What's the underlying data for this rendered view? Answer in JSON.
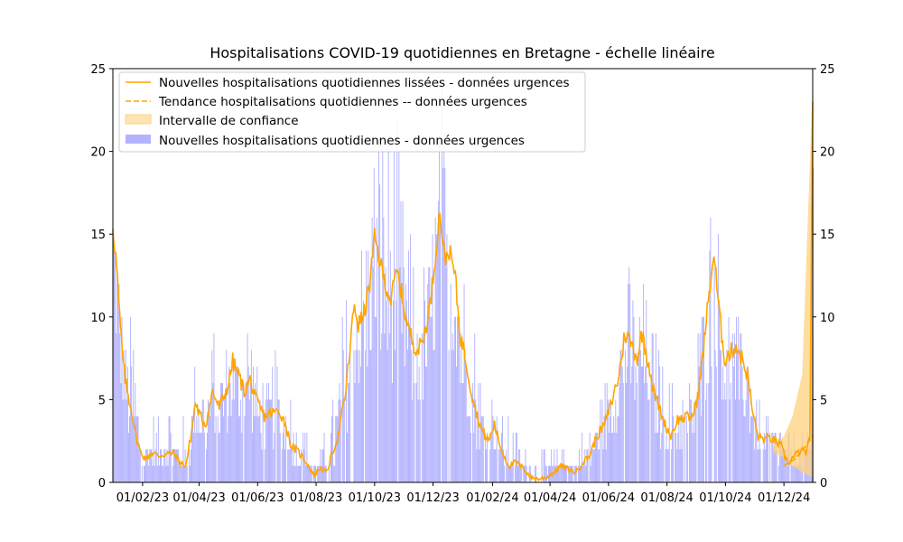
{
  "chart_data": {
    "type": "bar+line",
    "title": "Hospitalisations COVID-19 quotidiennes en Bretagne - échelle linéaire",
    "xlabel": "",
    "ylabel": "",
    "x_range": [
      "2023-01-01",
      "2024-12-31"
    ],
    "ylim": [
      0,
      25
    ],
    "y_ticks": [
      0,
      5,
      10,
      15,
      20,
      25
    ],
    "y_ticks_right": [
      0,
      5,
      10,
      15,
      20,
      25
    ],
    "x_ticks": [
      {
        "date": "2023-02-01",
        "label": "01/02/23"
      },
      {
        "date": "2023-04-01",
        "label": "01/04/23"
      },
      {
        "date": "2023-06-01",
        "label": "01/06/23"
      },
      {
        "date": "2023-08-01",
        "label": "01/08/23"
      },
      {
        "date": "2023-10-01",
        "label": "01/10/23"
      },
      {
        "date": "2023-12-01",
        "label": "01/12/23"
      },
      {
        "date": "2024-02-01",
        "label": "01/02/24"
      },
      {
        "date": "2024-04-01",
        "label": "01/04/24"
      },
      {
        "date": "2024-06-01",
        "label": "01/06/24"
      },
      {
        "date": "2024-08-01",
        "label": "01/08/24"
      },
      {
        "date": "2024-10-01",
        "label": "01/10/24"
      },
      {
        "date": "2024-12-01",
        "label": "01/12/24"
      }
    ],
    "grid": false,
    "legend_position": "top-left",
    "colors": {
      "bars": "#b3b3ff",
      "smoothed": "#ffa500",
      "trend": "#ffa500",
      "ci_fill": "#ffd27f"
    },
    "legend": [
      {
        "kind": "line",
        "label": "Nouvelles hospitalisations quotidiennes lissées - données urgences"
      },
      {
        "kind": "dashed",
        "label": "Tendance hospitalisations quotidiennes -- données urgences"
      },
      {
        "kind": "fill",
        "label": "Intervalle de confiance"
      },
      {
        "kind": "bar",
        "label": "Nouvelles hospitalisations quotidiennes - données urgences"
      }
    ],
    "series": [
      {
        "name": "Nouvelles hospitalisations quotidiennes lissées - données urgences",
        "kind": "line",
        "points": [
          [
            "2023-01-01",
            15.6
          ],
          [
            "2023-01-05",
            13.0
          ],
          [
            "2023-01-08",
            10.0
          ],
          [
            "2023-01-12",
            7.0
          ],
          [
            "2023-01-16",
            5.5
          ],
          [
            "2023-01-20",
            4.5
          ],
          [
            "2023-01-25",
            2.8
          ],
          [
            "2023-01-30",
            1.8
          ],
          [
            "2023-02-05",
            1.4
          ],
          [
            "2023-02-10",
            1.8
          ],
          [
            "2023-02-18",
            1.6
          ],
          [
            "2023-02-25",
            1.7
          ],
          [
            "2023-03-05",
            1.8
          ],
          [
            "2023-03-12",
            1.2
          ],
          [
            "2023-03-18",
            1.0
          ],
          [
            "2023-03-24",
            3.0
          ],
          [
            "2023-03-28",
            4.8
          ],
          [
            "2023-04-02",
            4.0
          ],
          [
            "2023-04-08",
            3.5
          ],
          [
            "2023-04-15",
            5.5
          ],
          [
            "2023-04-22",
            4.5
          ],
          [
            "2023-05-01",
            5.8
          ],
          [
            "2023-05-06",
            7.3
          ],
          [
            "2023-05-12",
            6.5
          ],
          [
            "2023-05-18",
            5.5
          ],
          [
            "2023-05-24",
            6.2
          ],
          [
            "2023-05-30",
            5.0
          ],
          [
            "2023-06-08",
            4.0
          ],
          [
            "2023-06-16",
            4.2
          ],
          [
            "2023-06-24",
            4.3
          ],
          [
            "2023-06-30",
            3.5
          ],
          [
            "2023-07-06",
            2.2
          ],
          [
            "2023-07-14",
            1.8
          ],
          [
            "2023-07-22",
            1.2
          ],
          [
            "2023-07-30",
            0.4
          ],
          [
            "2023-08-05",
            0.9
          ],
          [
            "2023-08-12",
            0.6
          ],
          [
            "2023-08-18",
            1.8
          ],
          [
            "2023-08-24",
            2.8
          ],
          [
            "2023-09-01",
            5.5
          ],
          [
            "2023-09-06",
            8.5
          ],
          [
            "2023-09-10",
            10.8
          ],
          [
            "2023-09-14",
            9.5
          ],
          [
            "2023-09-20",
            10.2
          ],
          [
            "2023-09-26",
            12.0
          ],
          [
            "2023-10-01",
            14.8
          ],
          [
            "2023-10-06",
            13.5
          ],
          [
            "2023-10-12",
            12.0
          ],
          [
            "2023-10-18",
            11.0
          ],
          [
            "2023-10-24",
            12.8
          ],
          [
            "2023-10-30",
            11.2
          ],
          [
            "2023-11-04",
            9.5
          ],
          [
            "2023-11-10",
            8.5
          ],
          [
            "2023-11-16",
            8.0
          ],
          [
            "2023-11-22",
            9.0
          ],
          [
            "2023-11-28",
            10.8
          ],
          [
            "2023-12-04",
            14.0
          ],
          [
            "2023-12-08",
            16.5
          ],
          [
            "2023-12-13",
            13.5
          ],
          [
            "2023-12-18",
            14.0
          ],
          [
            "2023-12-24",
            12.5
          ],
          [
            "2023-12-29",
            9.0
          ],
          [
            "2024-01-04",
            7.5
          ],
          [
            "2024-01-10",
            5.5
          ],
          [
            "2024-01-16",
            4.0
          ],
          [
            "2024-01-22",
            3.0
          ],
          [
            "2024-01-28",
            2.5
          ],
          [
            "2024-02-03",
            3.5
          ],
          [
            "2024-02-10",
            2.0
          ],
          [
            "2024-02-18",
            1.0
          ],
          [
            "2024-02-25",
            1.2
          ],
          [
            "2024-03-05",
            0.8
          ],
          [
            "2024-03-12",
            0.3
          ],
          [
            "2024-03-20",
            0.2
          ],
          [
            "2024-03-28",
            0.3
          ],
          [
            "2024-04-05",
            0.6
          ],
          [
            "2024-04-12",
            1.0
          ],
          [
            "2024-04-20",
            0.8
          ],
          [
            "2024-04-28",
            0.6
          ],
          [
            "2024-05-05",
            1.2
          ],
          [
            "2024-05-12",
            1.6
          ],
          [
            "2024-05-20",
            2.8
          ],
          [
            "2024-05-28",
            3.5
          ],
          [
            "2024-06-05",
            5.0
          ],
          [
            "2024-06-12",
            6.5
          ],
          [
            "2024-06-18",
            9.0
          ],
          [
            "2024-06-24",
            8.5
          ],
          [
            "2024-07-01",
            7.5
          ],
          [
            "2024-07-06",
            9.0
          ],
          [
            "2024-07-12",
            7.5
          ],
          [
            "2024-07-18",
            5.5
          ],
          [
            "2024-07-24",
            4.5
          ],
          [
            "2024-07-30",
            3.5
          ],
          [
            "2024-08-05",
            2.8
          ],
          [
            "2024-08-12",
            3.8
          ],
          [
            "2024-08-20",
            3.9
          ],
          [
            "2024-08-28",
            4.0
          ],
          [
            "2024-09-03",
            5.5
          ],
          [
            "2024-09-08",
            8.0
          ],
          [
            "2024-09-14",
            11.5
          ],
          [
            "2024-09-19",
            13.8
          ],
          [
            "2024-09-24",
            10.5
          ],
          [
            "2024-09-30",
            7.5
          ],
          [
            "2024-10-06",
            7.8
          ],
          [
            "2024-10-12",
            8.3
          ],
          [
            "2024-10-18",
            7.5
          ],
          [
            "2024-10-24",
            6.5
          ],
          [
            "2024-10-30",
            4.0
          ],
          [
            "2024-11-04",
            2.8
          ],
          [
            "2024-11-10",
            2.6
          ],
          [
            "2024-11-16",
            2.7
          ],
          [
            "2024-11-22",
            2.5
          ],
          [
            "2024-11-28",
            2.2
          ],
          [
            "2024-12-02",
            1.5
          ],
          [
            "2024-12-06",
            1.2
          ],
          [
            "2024-12-12",
            1.6
          ],
          [
            "2024-12-18",
            1.9
          ],
          [
            "2024-12-24",
            1.8
          ],
          [
            "2024-12-28",
            2.6
          ],
          [
            "2024-12-31",
            23.0
          ]
        ]
      },
      {
        "name": "Tendance hospitalisations quotidiennes -- données urgences",
        "kind": "dashed",
        "points": [
          [
            "2024-12-01",
            1.0
          ],
          [
            "2024-12-07",
            1.2
          ],
          [
            "2024-12-14",
            1.5
          ],
          [
            "2024-12-21",
            2.0
          ],
          [
            "2024-12-31",
            2.8
          ]
        ]
      },
      {
        "name": "Intervalle de confiance",
        "kind": "band",
        "upper": [
          [
            "2024-11-20",
            2.2
          ],
          [
            "2024-12-01",
            2.8
          ],
          [
            "2024-12-10",
            4.0
          ],
          [
            "2024-12-20",
            6.5
          ],
          [
            "2024-12-31",
            24.0
          ]
        ],
        "lower": [
          [
            "2024-11-20",
            1.8
          ],
          [
            "2024-12-01",
            1.5
          ],
          [
            "2024-12-10",
            1.0
          ],
          [
            "2024-12-20",
            0.6
          ],
          [
            "2024-12-31",
            0.3
          ]
        ]
      },
      {
        "name": "Nouvelles hospitalisations quotidiennes - données urgences",
        "kind": "bar",
        "envelope": [
          [
            "2023-01-01",
            19
          ],
          [
            "2023-01-08",
            13
          ],
          [
            "2023-01-15",
            8
          ],
          [
            "2023-01-22",
            11
          ],
          [
            "2023-01-29",
            4
          ],
          [
            "2023-02-05",
            3
          ],
          [
            "2023-02-12",
            4
          ],
          [
            "2023-02-19",
            4
          ],
          [
            "2023-02-26",
            7
          ],
          [
            "2023-03-05",
            4
          ],
          [
            "2023-03-12",
            4
          ],
          [
            "2023-03-19",
            3
          ],
          [
            "2023-03-26",
            7
          ],
          [
            "2023-04-02",
            7
          ],
          [
            "2023-04-09",
            6
          ],
          [
            "2023-04-16",
            10
          ],
          [
            "2023-04-23",
            8
          ],
          [
            "2023-04-30",
            9
          ],
          [
            "2023-05-07",
            8
          ],
          [
            "2023-05-14",
            8
          ],
          [
            "2023-05-21",
            12
          ],
          [
            "2023-05-28",
            8
          ],
          [
            "2023-06-04",
            7
          ],
          [
            "2023-06-11",
            6
          ],
          [
            "2023-06-18",
            8
          ],
          [
            "2023-06-25",
            6
          ],
          [
            "2023-07-02",
            8
          ],
          [
            "2023-07-09",
            4
          ],
          [
            "2023-07-16",
            4
          ],
          [
            "2023-07-23",
            3
          ],
          [
            "2023-07-30",
            2
          ],
          [
            "2023-08-06",
            2
          ],
          [
            "2023-08-13",
            4
          ],
          [
            "2023-08-20",
            5
          ],
          [
            "2023-08-27",
            10
          ],
          [
            "2023-09-03",
            13
          ],
          [
            "2023-09-10",
            14
          ],
          [
            "2023-09-17",
            15
          ],
          [
            "2023-09-24",
            17
          ],
          [
            "2023-10-01",
            22
          ],
          [
            "2023-10-08",
            24
          ],
          [
            "2023-10-15",
            22
          ],
          [
            "2023-10-22",
            23
          ],
          [
            "2023-10-29",
            18
          ],
          [
            "2023-11-05",
            16
          ],
          [
            "2023-11-12",
            14
          ],
          [
            "2023-11-19",
            13
          ],
          [
            "2023-11-26",
            14
          ],
          [
            "2023-12-03",
            19
          ],
          [
            "2023-12-10",
            24
          ],
          [
            "2023-12-17",
            19
          ],
          [
            "2023-12-24",
            18
          ],
          [
            "2023-12-31",
            15
          ],
          [
            "2024-01-07",
            11
          ],
          [
            "2024-01-14",
            10
          ],
          [
            "2024-01-21",
            6
          ],
          [
            "2024-01-28",
            6
          ],
          [
            "2024-02-04",
            5
          ],
          [
            "2024-02-11",
            4
          ],
          [
            "2024-02-18",
            4
          ],
          [
            "2024-02-25",
            3
          ],
          [
            "2024-03-03",
            2
          ],
          [
            "2024-03-10",
            2
          ],
          [
            "2024-03-17",
            2
          ],
          [
            "2024-03-24",
            2
          ],
          [
            "2024-03-31",
            2
          ],
          [
            "2024-04-07",
            2
          ],
          [
            "2024-04-14",
            2
          ],
          [
            "2024-04-21",
            2
          ],
          [
            "2024-04-28",
            2
          ],
          [
            "2024-05-05",
            3
          ],
          [
            "2024-05-12",
            3
          ],
          [
            "2024-05-19",
            4
          ],
          [
            "2024-05-26",
            6
          ],
          [
            "2024-06-02",
            7
          ],
          [
            "2024-06-09",
            8
          ],
          [
            "2024-06-16",
            12
          ],
          [
            "2024-06-23",
            13
          ],
          [
            "2024-06-30",
            12
          ],
          [
            "2024-07-07",
            12
          ],
          [
            "2024-07-14",
            10
          ],
          [
            "2024-07-21",
            9
          ],
          [
            "2024-07-28",
            7
          ],
          [
            "2024-08-04",
            6
          ],
          [
            "2024-08-11",
            6
          ],
          [
            "2024-08-18",
            6
          ],
          [
            "2024-08-25",
            6
          ],
          [
            "2024-09-01",
            10
          ],
          [
            "2024-09-08",
            12
          ],
          [
            "2024-09-15",
            17
          ],
          [
            "2024-09-22",
            16
          ],
          [
            "2024-09-29",
            12
          ],
          [
            "2024-10-06",
            11
          ],
          [
            "2024-10-13",
            10
          ],
          [
            "2024-10-20",
            9
          ],
          [
            "2024-10-27",
            8
          ],
          [
            "2024-11-03",
            5
          ],
          [
            "2024-11-10",
            4
          ],
          [
            "2024-11-17",
            4
          ],
          [
            "2024-11-24",
            4
          ],
          [
            "2024-12-01",
            3
          ],
          [
            "2024-12-08",
            3
          ],
          [
            "2024-12-15",
            3
          ],
          [
            "2024-12-22",
            3
          ],
          [
            "2024-12-29",
            3
          ]
        ]
      }
    ]
  }
}
